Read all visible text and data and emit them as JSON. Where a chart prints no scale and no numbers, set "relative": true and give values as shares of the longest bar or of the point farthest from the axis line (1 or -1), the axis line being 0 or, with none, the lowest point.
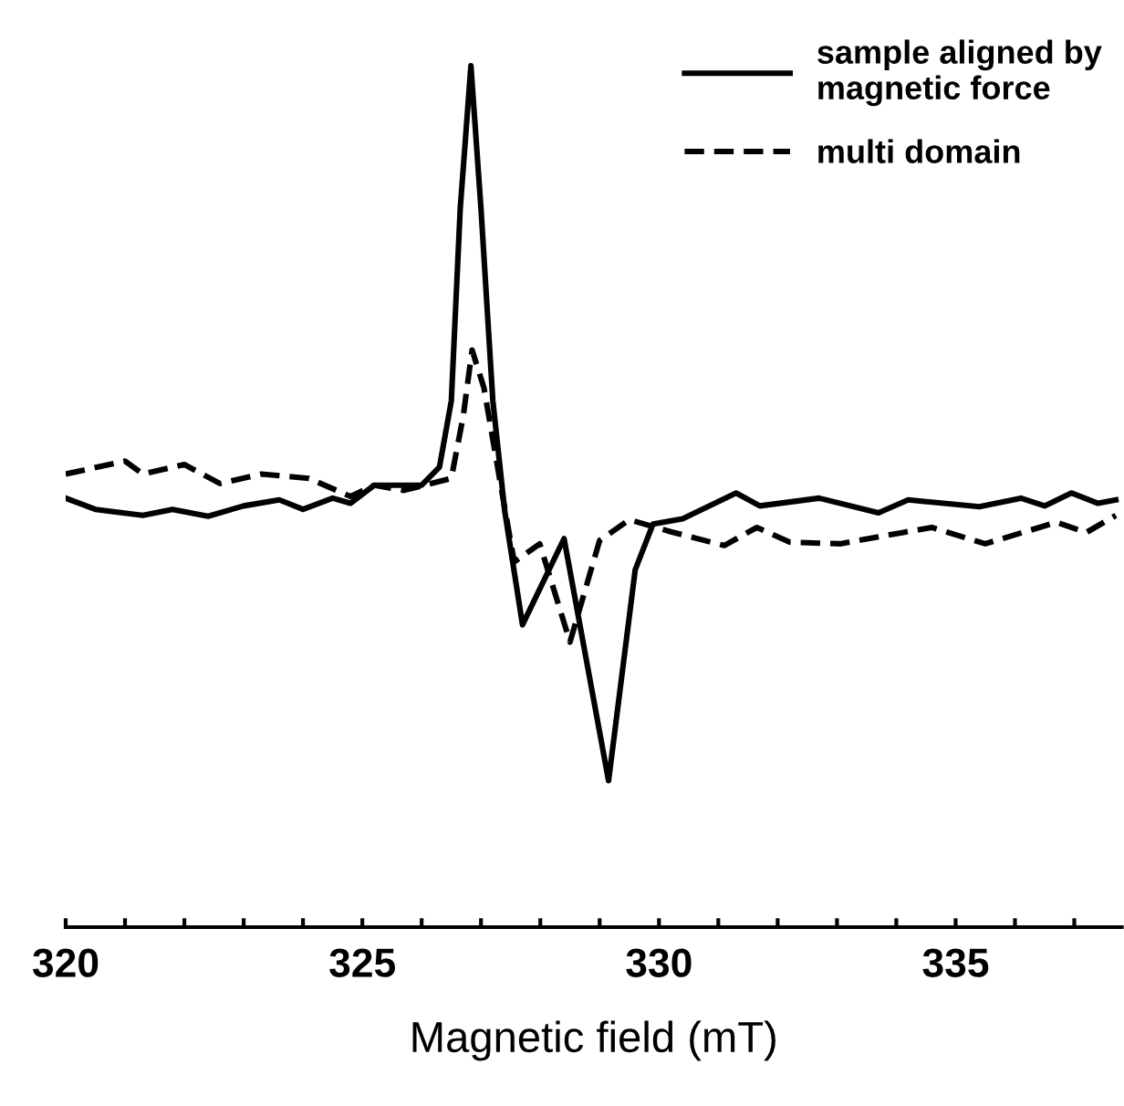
{
  "chart_data": {
    "type": "line",
    "xlabel": "Magnetic field (mT)",
    "relative": true,
    "legend": "top right",
    "grid": false,
    "marker": "none",
    "xlim": [
      320,
      337.8
    ],
    "xticks": [
      320,
      {
        "value": 321,
        "label": null
      },
      {
        "value": 322,
        "label": null
      },
      {
        "value": 323,
        "label": null
      },
      {
        "value": 324,
        "label": null
      },
      325,
      {
        "value": 326,
        "label": null
      },
      {
        "value": 327,
        "label": null
      },
      {
        "value": 328,
        "label": null
      },
      {
        "value": 329,
        "label": null
      },
      330,
      {
        "value": 331,
        "label": null
      },
      {
        "value": 332,
        "label": null
      },
      {
        "value": 333,
        "label": null
      },
      {
        "value": 334,
        "label": null
      },
      335,
      {
        "value": 336,
        "label": null
      },
      {
        "value": 337,
        "label": null
      }
    ],
    "series": [
      {
        "name": "sample aligned by\nmagnetic force",
        "color": "#000000",
        "line_style": "solid",
        "x": [
          320.0,
          320.5,
          321.3,
          321.8,
          322.4,
          323.0,
          323.6,
          324.0,
          324.5,
          324.8,
          325.2,
          326.0,
          326.3,
          326.5,
          326.65,
          326.83,
          327.0,
          327.2,
          327.4,
          327.7,
          328.4,
          329.15,
          329.6,
          329.9,
          330.4,
          331.3,
          331.7,
          332.7,
          333.7,
          334.2,
          335.4,
          336.1,
          336.5,
          336.95,
          337.4,
          337.7
        ],
        "values": [
          0.498,
          0.485,
          0.478,
          0.485,
          0.477,
          0.489,
          0.496,
          0.485,
          0.498,
          0.492,
          0.513,
          0.513,
          0.534,
          0.611,
          0.834,
          1.0,
          0.834,
          0.611,
          0.483,
          0.351,
          0.451,
          0.17,
          0.415,
          0.468,
          0.474,
          0.504,
          0.489,
          0.498,
          0.481,
          0.496,
          0.488,
          0.498,
          0.489,
          0.504,
          0.492,
          0.496
        ]
      },
      {
        "name": "multi domain",
        "color": "#000000",
        "line_style": "dashed",
        "x": [
          320.0,
          321.0,
          321.3,
          322.0,
          322.6,
          323.3,
          324.1,
          324.8,
          325.2,
          325.7,
          326.5,
          326.7,
          326.85,
          327.05,
          327.3,
          327.56,
          327.99,
          328.5,
          329.0,
          329.5,
          330.2,
          331.1,
          331.65,
          332.2,
          333.05,
          334.1,
          334.6,
          335.5,
          336.7,
          337.2,
          337.7
        ],
        "values": [
          0.526,
          0.541,
          0.526,
          0.537,
          0.515,
          0.526,
          0.521,
          0.5,
          0.513,
          0.507,
          0.521,
          0.593,
          0.67,
          0.626,
          0.526,
          0.424,
          0.445,
          0.331,
          0.449,
          0.473,
          0.459,
          0.443,
          0.464,
          0.447,
          0.445,
          0.458,
          0.464,
          0.445,
          0.47,
          0.458,
          0.478
        ]
      }
    ]
  }
}
